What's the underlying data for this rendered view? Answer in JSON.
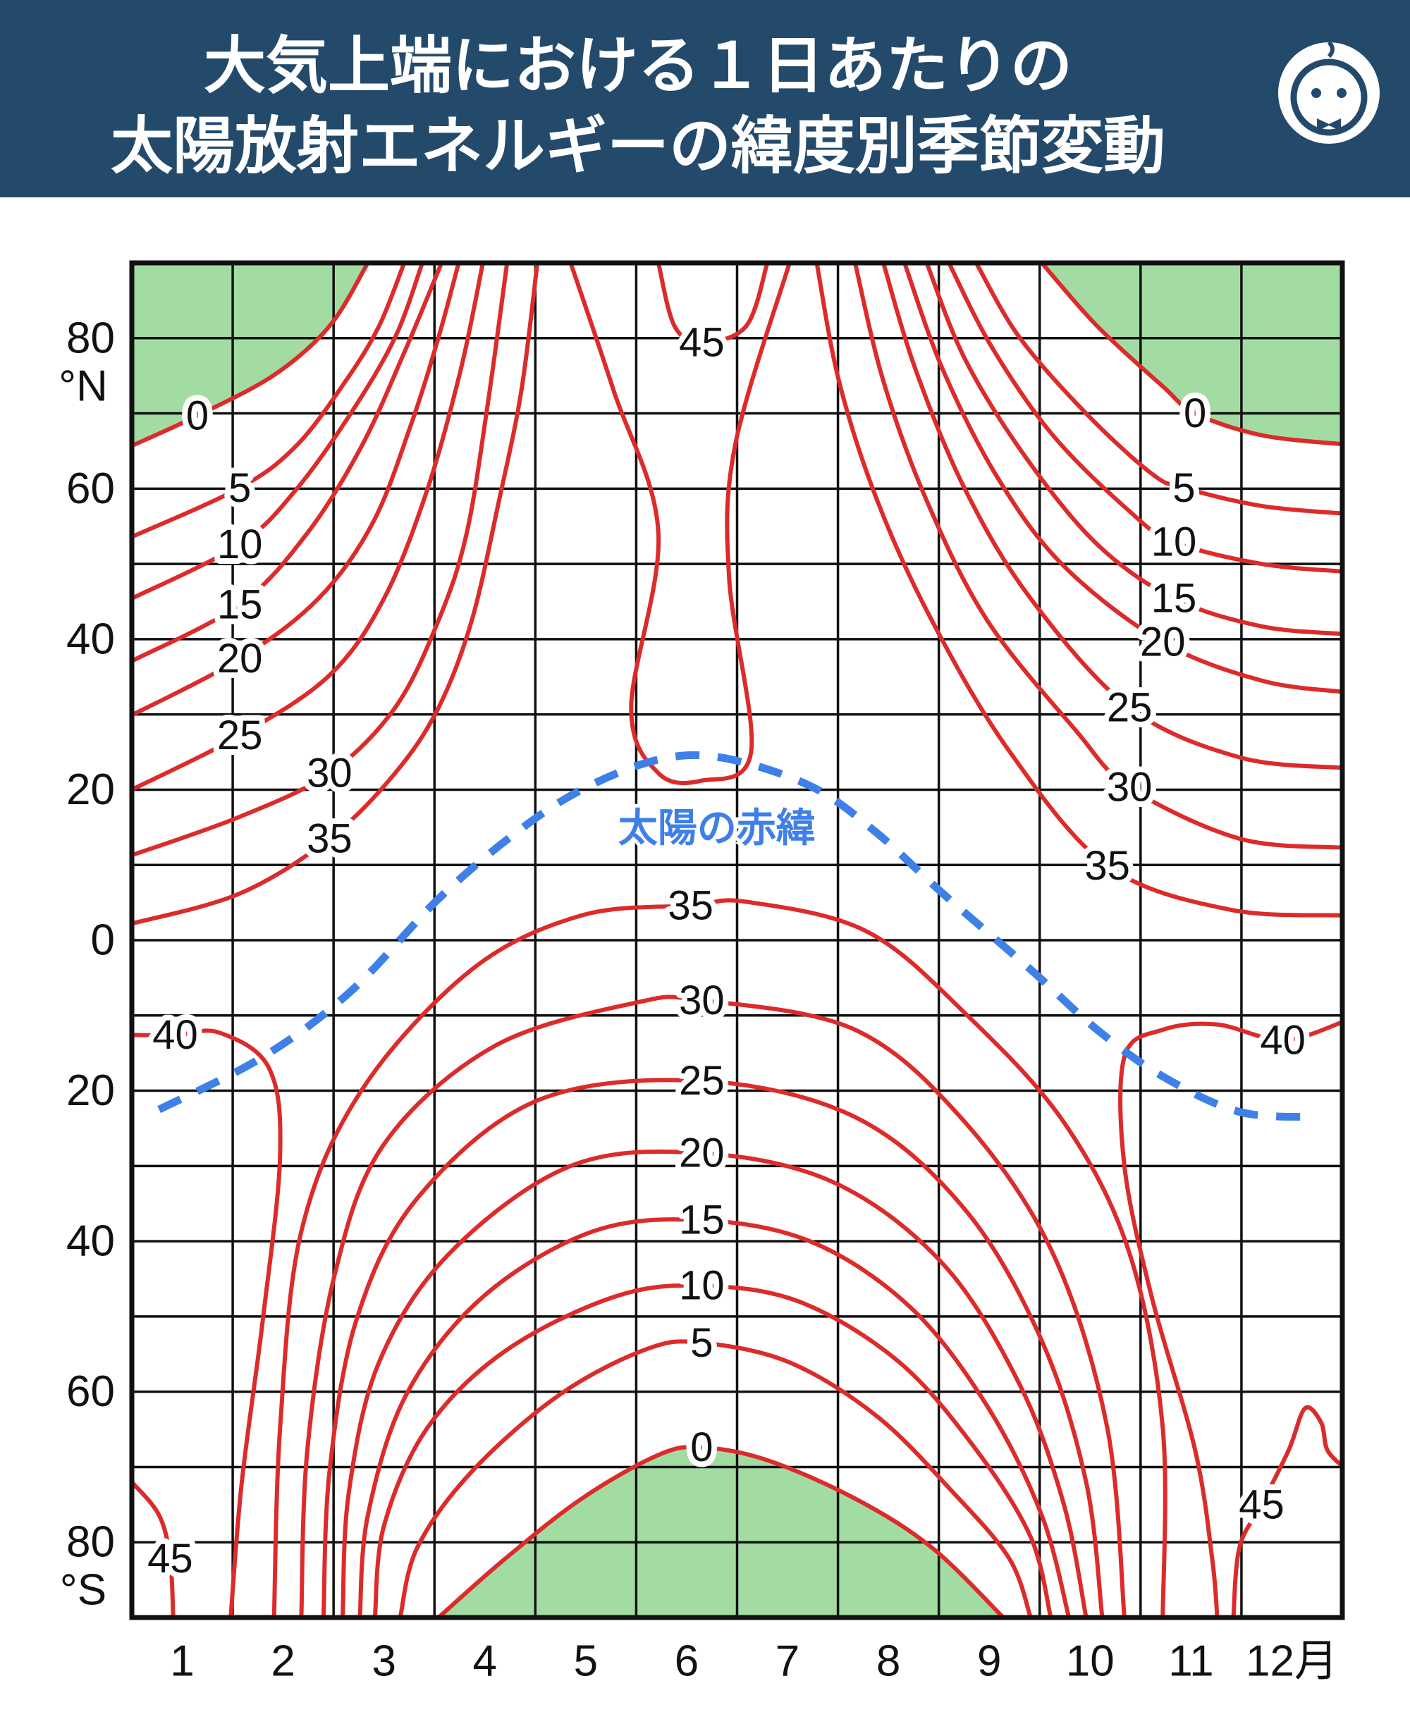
{
  "chart_data": {
    "type": "contour",
    "title": [
      "大気上端における１日あたりの",
      "太陽放射エネルギーの緯度別季節変動"
    ],
    "xlim": [
      0.5,
      12.5
    ],
    "xticks": [
      1,
      2,
      3,
      4,
      5,
      6,
      7,
      8,
      9,
      10,
      11,
      {
        "value": 12,
        "label": "12月"
      }
    ],
    "x_grid": [
      1.5,
      2.5,
      3.5,
      4.5,
      5.5,
      6.5,
      7.5,
      8.5,
      9.5,
      10.5,
      11.5
    ],
    "ylim": [
      -90,
      90
    ],
    "yticks": [
      80,
      60,
      40,
      20,
      0,
      {
        "value": -20,
        "label": "20"
      },
      {
        "value": -40,
        "label": "40"
      },
      {
        "value": -60,
        "label": "60"
      },
      {
        "value": -80,
        "label": "80"
      }
    ],
    "y_grid": [
      -80,
      -70,
      -60,
      -50,
      -40,
      -30,
      -20,
      -10,
      0,
      10,
      20,
      30,
      40,
      50,
      60,
      70,
      80
    ],
    "north_label": "°N",
    "south_label": "°S",
    "contour_color": "#dc2b2b",
    "fill_level": 0,
    "fill_color": "#a3dca3",
    "contours": [
      {
        "level": 0,
        "x": [
          0.5,
          1.15,
          1.91,
          2.46,
          2.84
        ],
        "y": [
          65.7,
          69.7,
          75.1,
          81.6,
          90
        ]
      },
      {
        "level": 5,
        "x": [
          0.5,
          1.57,
          2.13,
          2.62,
          2.95,
          3.2
        ],
        "y": [
          53.6,
          60.1,
          65.7,
          74.3,
          81.6,
          90
        ]
      },
      {
        "level": 10,
        "x": [
          0.5,
          1.57,
          2.13,
          2.67,
          3.11,
          3.38
        ],
        "y": [
          45.4,
          52.6,
          59.9,
          70,
          80.1,
          90
        ]
      },
      {
        "level": 15,
        "x": [
          0.5,
          1.57,
          2.24,
          2.78,
          3.22,
          3.57
        ],
        "y": [
          37.1,
          44.6,
          54.1,
          65.7,
          78.7,
          90
        ]
      },
      {
        "level": 20,
        "x": [
          0.5,
          1.57,
          2.35,
          2.89,
          3.27,
          3.54,
          3.74
        ],
        "y": [
          29.9,
          37.4,
          45.4,
          55.5,
          68.6,
          80.1,
          90
        ]
      },
      {
        "level": 25,
        "x": [
          0.5,
          1.57,
          2.46,
          3.0,
          3.43,
          3.76,
          3.98
        ],
        "y": [
          20,
          27.2,
          35.2,
          45.4,
          59.9,
          75.8,
          90
        ]
      },
      {
        "level": 30,
        "x": [
          0.5,
          1.57,
          2.46,
          3.11,
          3.54,
          3.82,
          4.03,
          4.22
        ],
        "y": [
          11.3,
          16.4,
          22.2,
          30.9,
          42.5,
          54.1,
          71.4,
          90
        ]
      },
      {
        "level": 35,
        "x": [
          0.5,
          1.57,
          2.46,
          3.11,
          3.54,
          3.87,
          4.14,
          4.36,
          4.52
        ],
        "y": [
          2.2,
          6.2,
          13.5,
          22.2,
          30.9,
          42.5,
          58.4,
          72.9,
          90
        ]
      },
      {
        "level": 40,
        "x": [
          4.85,
          5.28,
          5.72,
          5.45,
          5.72,
          6.15,
          6.64,
          6.42,
          6.48,
          7.02
        ],
        "y": [
          90,
          72.9,
          54.1,
          30.9,
          22.2,
          21.2,
          25.1,
          48.3,
          65.7,
          90
        ]
      },
      {
        "level": 45,
        "x": [
          5.72,
          5.88,
          6.15,
          6.59,
          6.8
        ],
        "y": [
          90,
          81.6,
          79.4,
          81.6,
          90
        ]
      },
      {
        "level": 0,
        "x": [
          9.52,
          10.07,
          10.72,
          11.04,
          11.7,
          12.5
        ],
        "y": [
          90,
          81.6,
          73.6,
          70,
          67.1,
          65.9
        ]
      },
      {
        "level": 5,
        "x": [
          8.87,
          9.3,
          9.96,
          10.61,
          10.93,
          11.7,
          12.5
        ],
        "y": [
          90,
          80.1,
          70,
          62,
          60.1,
          57.7,
          56.7
        ]
      },
      {
        "level": 10,
        "x": [
          8.6,
          9.03,
          9.63,
          10.39,
          10.83,
          11.7,
          12.5
        ],
        "y": [
          90,
          78.7,
          67.1,
          57,
          52.9,
          50,
          49
        ]
      },
      {
        "level": 15,
        "x": [
          8.38,
          8.76,
          9.36,
          10.07,
          10.83,
          11.7,
          12.5
        ],
        "y": [
          90,
          77.2,
          64.2,
          52.6,
          45.4,
          41.7,
          40.7
        ]
      },
      {
        "level": 20,
        "x": [
          8.16,
          8.54,
          9.09,
          9.74,
          10.72,
          11.7,
          12.5
        ],
        "y": [
          90,
          75.8,
          61.3,
          49.7,
          39.6,
          34.5,
          33
        ]
      },
      {
        "level": 25,
        "x": [
          7.95,
          8.27,
          8.76,
          9.41,
          10.39,
          11.48,
          12.5
        ],
        "y": [
          90,
          75.8,
          59.9,
          45.4,
          30.9,
          24.3,
          22.9
        ]
      },
      {
        "level": 30,
        "x": [
          7.67,
          7.95,
          8.38,
          8.98,
          9.85,
          10.39,
          11.48,
          12.5
        ],
        "y": [
          90,
          74.3,
          58.4,
          42.5,
          28,
          20.3,
          13.5,
          12.3
        ]
      },
      {
        "level": 35,
        "x": [
          7.29,
          7.51,
          7.89,
          8.43,
          9.2,
          10.17,
          11.37,
          12.5
        ],
        "y": [
          90,
          74.3,
          58.4,
          42.5,
          25.1,
          9.9,
          4.1,
          3.3
        ]
      },
      {
        "level": 0,
        "x": [
          3.54,
          4.2,
          4.96,
          5.72,
          6.15,
          6.8,
          7.67,
          8.43,
          9.14
        ],
        "y": [
          -90,
          -82.2,
          -74.2,
          -68.4,
          -67.4,
          -69.1,
          -74.2,
          -80.7,
          -90
        ]
      },
      {
        "level": 5,
        "x": [
          3.16,
          3.33,
          3.87,
          4.74,
          5.61,
          6.15,
          7.02,
          7.89,
          8.65,
          9.2,
          9.41
        ],
        "y": [
          -90,
          -80.7,
          -70.6,
          -60.4,
          -54.3,
          -53.5,
          -56.1,
          -63.3,
          -73.5,
          -82.2,
          -90
        ]
      },
      {
        "level": 10,
        "x": [
          2.91,
          3.0,
          3.43,
          4.2,
          5.28,
          6.15,
          7.13,
          8.11,
          8.87,
          9.41,
          9.61
        ],
        "y": [
          -90,
          -77.8,
          -64.8,
          -54.6,
          -47.4,
          -45.9,
          -48.1,
          -56.1,
          -67.7,
          -79.3,
          -90
        ]
      },
      {
        "level": 15,
        "x": [
          2.76,
          2.84,
          3.22,
          3.98,
          5.07,
          6.15,
          7.24,
          8.22,
          8.98,
          9.52,
          9.79
        ],
        "y": [
          -90,
          -76.4,
          -60.4,
          -47.4,
          -38.7,
          -37.2,
          -40.1,
          -48.8,
          -61.9,
          -76.4,
          -90
        ]
      },
      {
        "level": 20,
        "x": [
          2.59,
          2.65,
          2.95,
          3.65,
          4.85,
          6.15,
          7.46,
          8.54,
          9.3,
          9.74,
          9.96
        ],
        "y": [
          -90,
          -73.5,
          -56.1,
          -41.6,
          -30,
          -28.3,
          -32.2,
          -43,
          -59,
          -75,
          -90
        ]
      },
      {
        "level": 25,
        "x": [
          2.4,
          2.46,
          2.73,
          3.33,
          4.52,
          6.15,
          7.67,
          8.76,
          9.52,
          9.96,
          10.12
        ],
        "y": [
          -90,
          -70.6,
          -50.3,
          -34.3,
          -21.3,
          -18.7,
          -23.5,
          -35.8,
          -53.2,
          -72,
          -90
        ]
      },
      {
        "level": 30,
        "x": [
          2.18,
          2.24,
          2.51,
          3.0,
          4.09,
          5.5,
          6.15,
          7.67,
          8.76,
          9.63,
          10.17,
          10.34
        ],
        "y": [
          -90,
          -67.7,
          -44.5,
          -27.1,
          -14.1,
          -8.3,
          -8,
          -11.9,
          -24.2,
          -41.6,
          -64.8,
          -90
        ]
      },
      {
        "level": 35,
        "x": [
          1.91,
          1.97,
          2.18,
          2.78,
          3.87,
          4.96,
          6.04,
          6.59,
          7.78,
          8.76,
          9.74,
          10.39,
          10.72,
          10.72
        ],
        "y": [
          -90,
          -64.8,
          -38.7,
          -19.9,
          -3.9,
          3.3,
          4.6,
          5.1,
          1.2,
          -9.7,
          -24.2,
          -41.6,
          -64.8,
          -90
        ]
      },
      {
        "level": 40,
        "x": [
          0.5,
          0.93,
          1.37,
          1.86,
          1.97,
          1.8,
          1.59,
          1.48
        ],
        "y": [
          -12.6,
          -12.6,
          -12.3,
          -17,
          -28.6,
          -50.3,
          -72,
          -90
        ]
      },
      {
        "level": 45,
        "x": [
          0.5,
          0.77,
          0.88,
          0.91
        ],
        "y": [
          -72,
          -76.4,
          -82.2,
          -90
        ]
      },
      {
        "level": 40,
        "x": [
          12.5,
          11.91,
          11.26,
          10.72,
          10.34,
          10.34,
          10.61,
          11.04,
          11.21,
          11.26
        ],
        "y": [
          -10.9,
          -13.3,
          -11.2,
          -11.9,
          -15.5,
          -30,
          -47.4,
          -67.7,
          -82.2,
          -90
        ]
      },
      {
        "level": 45,
        "x": [
          11.42,
          11.48,
          11.7,
          11.97,
          12.13,
          12.29,
          12.35,
          12.5
        ],
        "y": [
          -90,
          -80.7,
          -75,
          -67.7,
          -62.2,
          -64.1,
          -67.7,
          -69.9
        ]
      }
    ],
    "series": [
      {
        "name": "太陽の赤緯",
        "color": "#3f7fe8",
        "x": [
          0.77,
          1.8,
          2.67,
          3.54,
          4.3,
          4.96,
          5.72,
          6.37,
          7.24,
          7.89,
          8.54,
          9.41,
          10.07,
          10.72,
          11.48,
          12.24
        ],
        "values": [
          -22.5,
          -15.5,
          -6.8,
          5.5,
          14.2,
          20,
          24,
          24.2,
          20.4,
          14.2,
          6.2,
          -3.9,
          -11.9,
          -18.1,
          -22.8,
          -23.5
        ]
      }
    ]
  }
}
